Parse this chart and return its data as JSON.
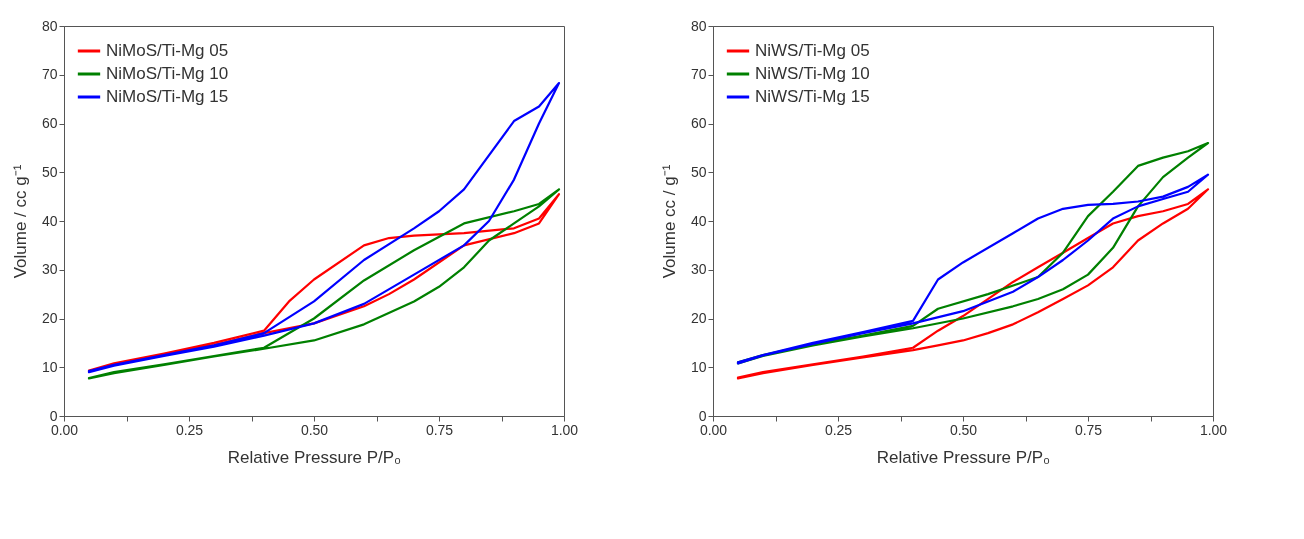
{
  "chart_data": [
    {
      "type": "line",
      "xlabel": "Relative Pressure P/P₀",
      "ylabel": "Volume / cc g⁻¹",
      "legend": "top left",
      "grid": false,
      "xlim": [
        0,
        1
      ],
      "ylim": [
        0,
        80
      ],
      "xticks": [
        {
          "value": 0,
          "label": "0.00"
        },
        {
          "value": 0.125,
          "label": null
        },
        {
          "value": 0.25,
          "label": "0.25"
        },
        {
          "value": 0.375,
          "label": null
        },
        {
          "value": 0.5,
          "label": "0.50"
        },
        {
          "value": 0.625,
          "label": null
        },
        {
          "value": 0.75,
          "label": "0.75"
        },
        {
          "value": 0.875,
          "label": null
        },
        {
          "value": 1,
          "label": "1.00"
        }
      ],
      "yticks": [
        0,
        10,
        20,
        30,
        40,
        50,
        60,
        70,
        80
      ],
      "series": [
        {
          "name": "NiMoS/Ti-Mg 05",
          "color": "#ff0000",
          "x": [
            0.05,
            0.1,
            0.2,
            0.3,
            0.4,
            0.5,
            0.6,
            0.65,
            0.7,
            0.8,
            0.9,
            0.95,
            0.99,
            0.95,
            0.9,
            0.8,
            0.7,
            0.65,
            0.6,
            0.5,
            0.45,
            0.4,
            0.3,
            0.2,
            0.1,
            0.05
          ],
          "values": [
            9.2,
            10.5,
            12.5,
            14.5,
            17,
            19,
            22.5,
            25,
            28,
            35,
            37.5,
            39.5,
            45.5,
            40.5,
            38.5,
            37.5,
            37,
            36.5,
            35,
            28,
            23.5,
            17.5,
            15,
            12.8,
            10.8,
            9.3
          ]
        },
        {
          "name": "NiMoS/Ti-Mg 10",
          "color": "#008000",
          "x": [
            0.05,
            0.1,
            0.2,
            0.3,
            0.4,
            0.5,
            0.6,
            0.7,
            0.75,
            0.8,
            0.85,
            0.9,
            0.95,
            0.99,
            0.95,
            0.9,
            0.8,
            0.7,
            0.6,
            0.5,
            0.4,
            0.3,
            0.2,
            0.1,
            0.05
          ],
          "values": [
            7.7,
            8.8,
            10.5,
            12.2,
            13.8,
            15.5,
            18.8,
            23.5,
            26.5,
            30.5,
            36,
            39.5,
            43,
            46.5,
            43.5,
            42,
            39.5,
            34,
            27.8,
            20,
            14,
            12.3,
            10.6,
            9,
            7.8
          ]
        },
        {
          "name": "NiMoS/Ti-Mg 15",
          "color": "#0000ff",
          "x": [
            0.05,
            0.1,
            0.2,
            0.3,
            0.4,
            0.5,
            0.6,
            0.7,
            0.8,
            0.85,
            0.9,
            0.95,
            0.99,
            0.95,
            0.9,
            0.8,
            0.75,
            0.7,
            0.6,
            0.5,
            0.4,
            0.3,
            0.2,
            0.1,
            0.05
          ],
          "values": [
            9,
            10.3,
            12.3,
            14.2,
            16.5,
            19,
            23,
            29,
            35,
            40,
            48.5,
            60,
            68.3,
            63.5,
            60.5,
            46.5,
            42,
            38.5,
            32,
            23.5,
            17,
            14.5,
            12.5,
            10.5,
            9.2
          ]
        }
      ]
    },
    {
      "type": "line",
      "xlabel": "Relative Pressure P/P₀",
      "ylabel": "Volume cc / g⁻¹",
      "legend": "top left",
      "grid": false,
      "xlim": [
        0,
        1
      ],
      "ylim": [
        0,
        80
      ],
      "xticks": [
        {
          "value": 0,
          "label": "0.00"
        },
        {
          "value": 0.125,
          "label": null
        },
        {
          "value": 0.25,
          "label": "0.25"
        },
        {
          "value": 0.375,
          "label": null
        },
        {
          "value": 0.5,
          "label": "0.50"
        },
        {
          "value": 0.625,
          "label": null
        },
        {
          "value": 0.75,
          "label": "0.75"
        },
        {
          "value": 0.875,
          "label": null
        },
        {
          "value": 1,
          "label": "1.00"
        }
      ],
      "yticks": [
        0,
        10,
        20,
        30,
        40,
        50,
        60,
        70,
        80
      ],
      "series": [
        {
          "name": "NiWS/Ti-Mg 05",
          "color": "#ff0000",
          "x": [
            0.05,
            0.1,
            0.2,
            0.3,
            0.4,
            0.45,
            0.5,
            0.55,
            0.6,
            0.65,
            0.7,
            0.75,
            0.8,
            0.85,
            0.9,
            0.95,
            0.99,
            0.95,
            0.9,
            0.85,
            0.8,
            0.75,
            0.7,
            0.65,
            0.6,
            0.5,
            0.45,
            0.4,
            0.3,
            0.2,
            0.1,
            0.05
          ],
          "values": [
            7.7,
            8.8,
            10.5,
            12,
            13.5,
            14.5,
            15.5,
            17,
            18.8,
            21.3,
            24,
            26.8,
            30.5,
            36,
            39.5,
            42.5,
            46.5,
            43.5,
            42,
            41,
            39.5,
            36.5,
            33.5,
            30.5,
            27.5,
            20.5,
            17.5,
            14,
            12.2,
            10.6,
            9,
            7.9
          ]
        },
        {
          "name": "NiWS/Ti-Mg 10",
          "color": "#008000",
          "x": [
            0.05,
            0.1,
            0.2,
            0.3,
            0.4,
            0.5,
            0.6,
            0.65,
            0.7,
            0.75,
            0.8,
            0.85,
            0.9,
            0.95,
            0.99,
            0.95,
            0.9,
            0.85,
            0.8,
            0.75,
            0.7,
            0.65,
            0.55,
            0.45,
            0.4,
            0.3,
            0.2,
            0.1,
            0.05
          ],
          "values": [
            10.8,
            12.3,
            14.5,
            16.3,
            18,
            20,
            22.5,
            24,
            26,
            29,
            34.5,
            43,
            49,
            53,
            56,
            54.3,
            53,
            51.3,
            46,
            41,
            33.5,
            28.5,
            25,
            22,
            18.5,
            16.5,
            14.7,
            12.5,
            11
          ]
        },
        {
          "name": "NiWS/Ti-Mg 15",
          "color": "#0000ff",
          "x": [
            0.05,
            0.1,
            0.2,
            0.3,
            0.4,
            0.5,
            0.6,
            0.65,
            0.7,
            0.75,
            0.8,
            0.85,
            0.9,
            0.95,
            0.99,
            0.95,
            0.9,
            0.85,
            0.8,
            0.75,
            0.7,
            0.65,
            0.6,
            0.5,
            0.45,
            0.4,
            0.3,
            0.2,
            0.1,
            0.05
          ],
          "values": [
            10.8,
            12.4,
            14.8,
            17,
            19,
            21.5,
            25.5,
            28.5,
            32,
            36,
            40.5,
            43,
            44.5,
            46,
            49.5,
            47,
            45,
            44,
            43.5,
            43.3,
            42.5,
            40.5,
            37.5,
            31.5,
            28,
            19.5,
            17.2,
            15,
            12.5,
            11
          ]
        }
      ]
    }
  ]
}
